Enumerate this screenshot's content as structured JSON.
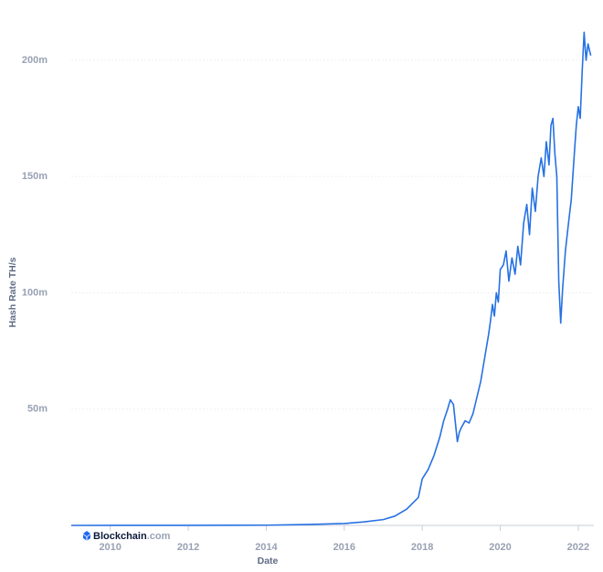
{
  "chart_data": {
    "type": "line",
    "y_label": "Hash Rate TH/s",
    "x_label": "Date",
    "logo": {
      "name": "Blockchain",
      "suffix": ".com"
    },
    "x": [
      2009.0,
      2012.0,
      2014.0,
      2015.0,
      2016.0,
      2016.5,
      2017.0,
      2017.3,
      2017.6,
      2017.9,
      2018.0,
      2018.15,
      2018.3,
      2018.45,
      2018.55,
      2018.65,
      2018.72,
      2018.8,
      2018.85,
      2018.9,
      2018.95,
      2019.0,
      2019.1,
      2019.2,
      2019.3,
      2019.4,
      2019.5,
      2019.6,
      2019.7,
      2019.75,
      2019.8,
      2019.85,
      2019.9,
      2019.95,
      2020.0,
      2020.08,
      2020.15,
      2020.22,
      2020.3,
      2020.38,
      2020.45,
      2020.52,
      2020.6,
      2020.68,
      2020.75,
      2020.82,
      2020.9,
      2020.97,
      2021.05,
      2021.12,
      2021.18,
      2021.25,
      2021.3,
      2021.35,
      2021.4,
      2021.45,
      2021.5,
      2021.55,
      2021.6,
      2021.67,
      2021.75,
      2021.82,
      2021.9,
      2021.95,
      2022.0,
      2022.05,
      2022.1,
      2022.15,
      2022.2,
      2022.25,
      2022.32
    ],
    "values": [
      0,
      0.02,
      0.1,
      0.35,
      0.8,
      1.5,
      2.5,
      4,
      7,
      12,
      20,
      24,
      30,
      38,
      45,
      50,
      54,
      52,
      44,
      36,
      40,
      42,
      45,
      44,
      48,
      55,
      62,
      72,
      82,
      88,
      95,
      90,
      100,
      96,
      110,
      112,
      118,
      105,
      115,
      108,
      120,
      112,
      130,
      138,
      125,
      145,
      135,
      150,
      158,
      150,
      165,
      155,
      172,
      175,
      160,
      150,
      105,
      87,
      102,
      118,
      130,
      140,
      160,
      172,
      180,
      175,
      195,
      212,
      200,
      207,
      202
    ],
    "color": "#2671e3",
    "xlim": [
      2009.0,
      2022.4
    ],
    "xticks": [
      2010,
      2012,
      2014,
      2016,
      2018,
      2020,
      2022
    ],
    "ylim": [
      0,
      220
    ],
    "yticks": [
      {
        "value": 50,
        "label": "50m"
      },
      {
        "value": 100,
        "label": "100m"
      },
      {
        "value": 150,
        "label": "150m"
      },
      {
        "value": 200,
        "label": "200m"
      }
    ],
    "grid": true
  }
}
